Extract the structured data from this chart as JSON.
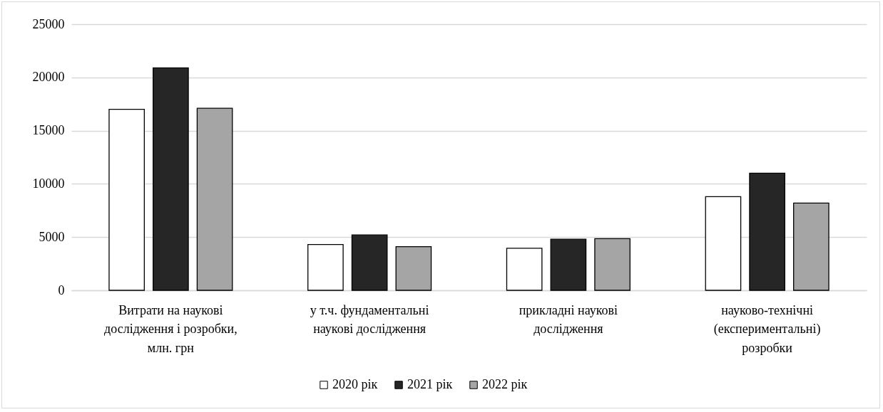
{
  "chart_data": {
    "type": "bar",
    "categories": [
      "Витрати на наукові дослідження і розробки, млн. грн",
      "у т.ч. фундаментальні наукові дослідження",
      "прикладні наукові дослідження",
      "науково-технічні (експериментальні) розробки"
    ],
    "series": [
      {
        "name": "2020 рік",
        "color": "#ffffff",
        "values": [
          17000,
          4300,
          3950,
          8800
        ]
      },
      {
        "name": "2021 рік",
        "color": "#262626",
        "values": [
          20900,
          5200,
          4800,
          11000
        ]
      },
      {
        "name": "2022 рік",
        "color": "#a5a5a5",
        "values": [
          17100,
          4100,
          4850,
          8200
        ]
      }
    ],
    "ylim": [
      0,
      25000
    ],
    "yticks": [
      0,
      5000,
      10000,
      15000,
      20000,
      25000
    ],
    "grid": "y",
    "legend": "bottom"
  }
}
